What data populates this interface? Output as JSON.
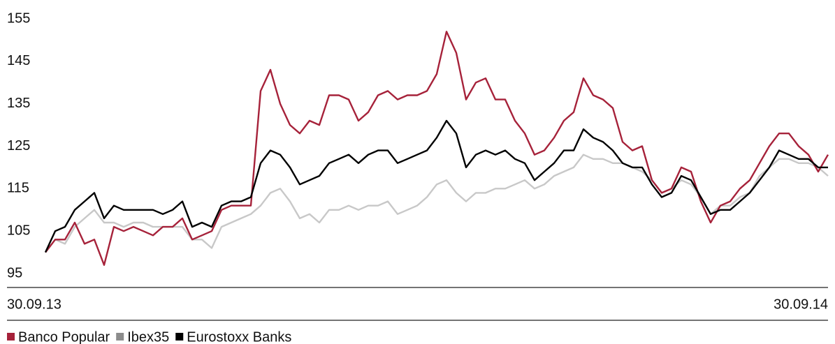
{
  "chart_data": {
    "type": "line",
    "categories": [
      "30.09.13",
      null,
      null,
      null,
      null,
      null,
      null,
      null,
      null,
      null,
      null,
      null,
      null,
      null,
      null,
      null,
      null,
      null,
      null,
      null,
      null,
      null,
      null,
      null,
      null,
      null,
      null,
      null,
      null,
      null,
      null,
      null,
      null,
      null,
      null,
      null,
      null,
      null,
      null,
      null,
      null,
      null,
      null,
      null,
      null,
      null,
      null,
      null,
      null,
      null,
      null,
      null,
      null,
      null,
      null,
      null,
      null,
      null,
      null,
      null,
      null,
      null,
      null,
      null,
      null,
      null,
      null,
      null,
      null,
      null,
      null,
      null,
      null,
      null,
      null,
      null,
      null,
      null,
      null,
      null,
      "30.09.14"
    ],
    "series": [
      {
        "name": "Banco Popular",
        "color": "#a6223a",
        "values": [
          100,
          103,
          103,
          107,
          102,
          103,
          97,
          106,
          105,
          106,
          105,
          104,
          106,
          106,
          108,
          103,
          104,
          105,
          110,
          111,
          111,
          111,
          138,
          143,
          135,
          130,
          128,
          131,
          130,
          137,
          137,
          136,
          131,
          133,
          137,
          138,
          136,
          137,
          137,
          138,
          142,
          152,
          147,
          136,
          140,
          141,
          136,
          136,
          131,
          128,
          123,
          124,
          127,
          131,
          133,
          141,
          137,
          136,
          134,
          126,
          124,
          125,
          117,
          114,
          115,
          120,
          119,
          112,
          107,
          111,
          112,
          115,
          117,
          121,
          125,
          128,
          128,
          125,
          123,
          119,
          123
        ]
      },
      {
        "name": "Ibex35",
        "color": "#c8c8c8",
        "values": [
          100,
          103,
          102,
          106,
          108,
          110,
          107,
          107,
          106,
          107,
          107,
          106,
          106,
          106,
          106,
          103,
          103,
          101,
          106,
          107,
          108,
          109,
          111,
          114,
          115,
          112,
          108,
          109,
          107,
          110,
          110,
          111,
          110,
          111,
          111,
          112,
          109,
          110,
          111,
          113,
          116,
          117,
          114,
          112,
          114,
          114,
          115,
          115,
          116,
          117,
          115,
          116,
          118,
          119,
          120,
          123,
          122,
          122,
          121,
          121,
          120,
          119,
          117,
          114,
          115,
          117,
          116,
          113,
          109,
          111,
          111,
          113,
          114,
          118,
          120,
          122,
          122,
          121,
          121,
          120,
          118
        ]
      },
      {
        "name": "Eurostoxx Banks",
        "color": "#000000",
        "values": [
          100,
          105,
          106,
          110,
          112,
          114,
          108,
          111,
          110,
          110,
          110,
          110,
          109,
          110,
          112,
          106,
          107,
          106,
          111,
          112,
          112,
          113,
          121,
          124,
          123,
          120,
          116,
          117,
          118,
          121,
          122,
          123,
          121,
          123,
          124,
          124,
          121,
          122,
          123,
          124,
          127,
          131,
          128,
          120,
          123,
          124,
          123,
          124,
          122,
          121,
          117,
          119,
          121,
          124,
          124,
          129,
          127,
          126,
          124,
          121,
          120,
          120,
          116,
          113,
          114,
          118,
          117,
          113,
          109,
          110,
          110,
          112,
          114,
          117,
          120,
          124,
          123,
          122,
          122,
          120,
          120
        ]
      }
    ],
    "ylim": [
      95,
      155
    ],
    "yticks": [
      95,
      105,
      115,
      125,
      135,
      145,
      155
    ],
    "grid": false,
    "legend": "bottom-left"
  }
}
